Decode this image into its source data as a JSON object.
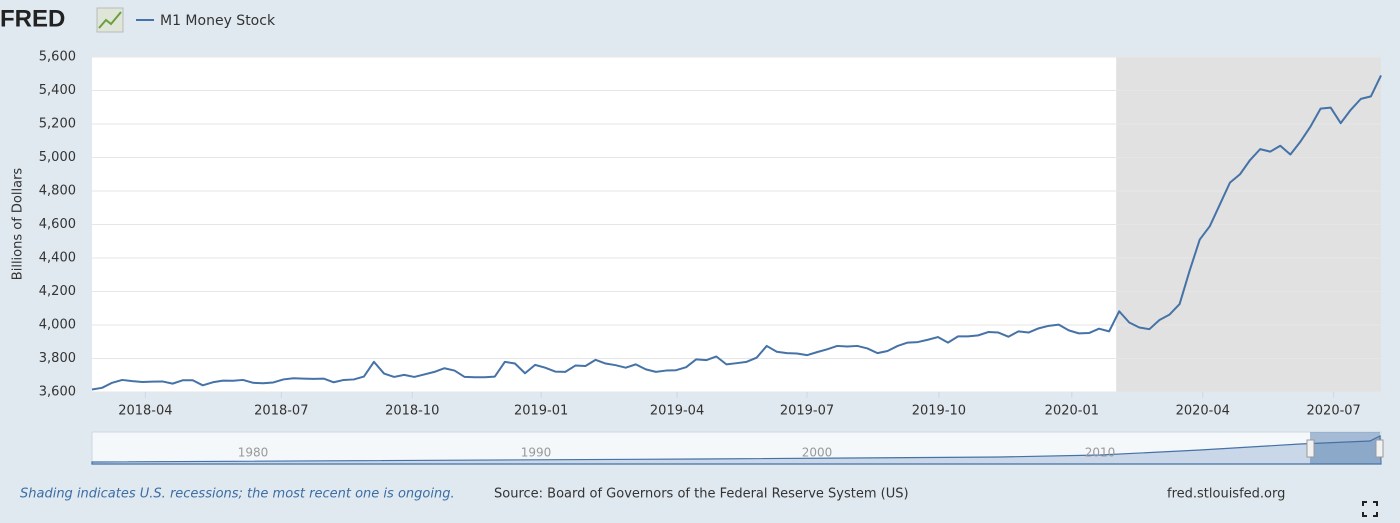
{
  "logo": "FRED",
  "chart_data": {
    "type": "line",
    "series": [
      {
        "name": "M1 Money Stock",
        "color": "#4572a7",
        "values": [
          3615,
          3625,
          3655,
          3672,
          3665,
          3660,
          3662,
          3663,
          3650,
          3670,
          3670,
          3640,
          3658,
          3668,
          3667,
          3672,
          3655,
          3652,
          3657,
          3675,
          3682,
          3680,
          3678,
          3680,
          3658,
          3672,
          3675,
          3692,
          3780,
          3710,
          3690,
          3702,
          3690,
          3705,
          3720,
          3742,
          3728,
          3690,
          3688,
          3688,
          3692,
          3780,
          3770,
          3712,
          3762,
          3745,
          3722,
          3720,
          3758,
          3755,
          3792,
          3770,
          3760,
          3745,
          3765,
          3735,
          3720,
          3728,
          3730,
          3748,
          3795,
          3790,
          3812,
          3765,
          3772,
          3780,
          3805,
          3875,
          3840,
          3832,
          3830,
          3820,
          3838,
          3855,
          3875,
          3872,
          3875,
          3860,
          3832,
          3845,
          3875,
          3895,
          3898,
          3912,
          3928,
          3895,
          3932,
          3932,
          3938,
          3958,
          3955,
          3930,
          3962,
          3955,
          3980,
          3995,
          4002,
          3968,
          3950,
          3952,
          3978,
          3962,
          4082,
          4015,
          3985,
          3975,
          4030,
          4062,
          4125,
          4325,
          4510,
          4590,
          4720,
          4850,
          4900,
          4985,
          5050,
          5035,
          5070,
          5018,
          5095,
          5185,
          5292,
          5298,
          5205,
          5285,
          5350,
          5365,
          5490
        ]
      }
    ],
    "xlim": [
      0,
      128
    ],
    "xticks": [
      {
        "value": 5.3,
        "label": "2018-04"
      },
      {
        "value": 18.8,
        "label": "2018-07"
      },
      {
        "value": 31.8,
        "label": "2018-10"
      },
      {
        "value": 44.6,
        "label": "2019-01"
      },
      {
        "value": 58.1,
        "label": "2019-04"
      },
      {
        "value": 71.0,
        "label": "2019-07"
      },
      {
        "value": 84.1,
        "label": "2019-10"
      },
      {
        "value": 97.3,
        "label": "2020-01"
      },
      {
        "value": 110.3,
        "label": "2020-04"
      },
      {
        "value": 123.3,
        "label": "2020-07"
      }
    ],
    "ylim": [
      3600,
      5600
    ],
    "yticks": [
      {
        "value": 3600,
        "label": "3,600"
      },
      {
        "value": 3800,
        "label": "3,800"
      },
      {
        "value": 4000,
        "label": "4,000"
      },
      {
        "value": 4200,
        "label": "4,200"
      },
      {
        "value": 4400,
        "label": "4,400"
      },
      {
        "value": 4600,
        "label": "4,600"
      },
      {
        "value": 4800,
        "label": "4,800"
      },
      {
        "value": 5000,
        "label": "5,000"
      },
      {
        "value": 5200,
        "label": "5,200"
      },
      {
        "value": 5400,
        "label": "5,400"
      },
      {
        "value": 5600,
        "label": "5,600"
      }
    ],
    "ylabel": "Billions of Dollars",
    "grid": true,
    "recession": [
      101.7,
      128
    ],
    "navigator_labels": [
      "1980",
      "1990",
      "2000",
      "2010"
    ]
  },
  "footer": {
    "note": "Shading indicates U.S. recessions; the most recent one is ongoing.",
    "source": "Source: Board of Governors of the Federal Reserve System (US)",
    "site": "fred.stlouisfed.org"
  }
}
